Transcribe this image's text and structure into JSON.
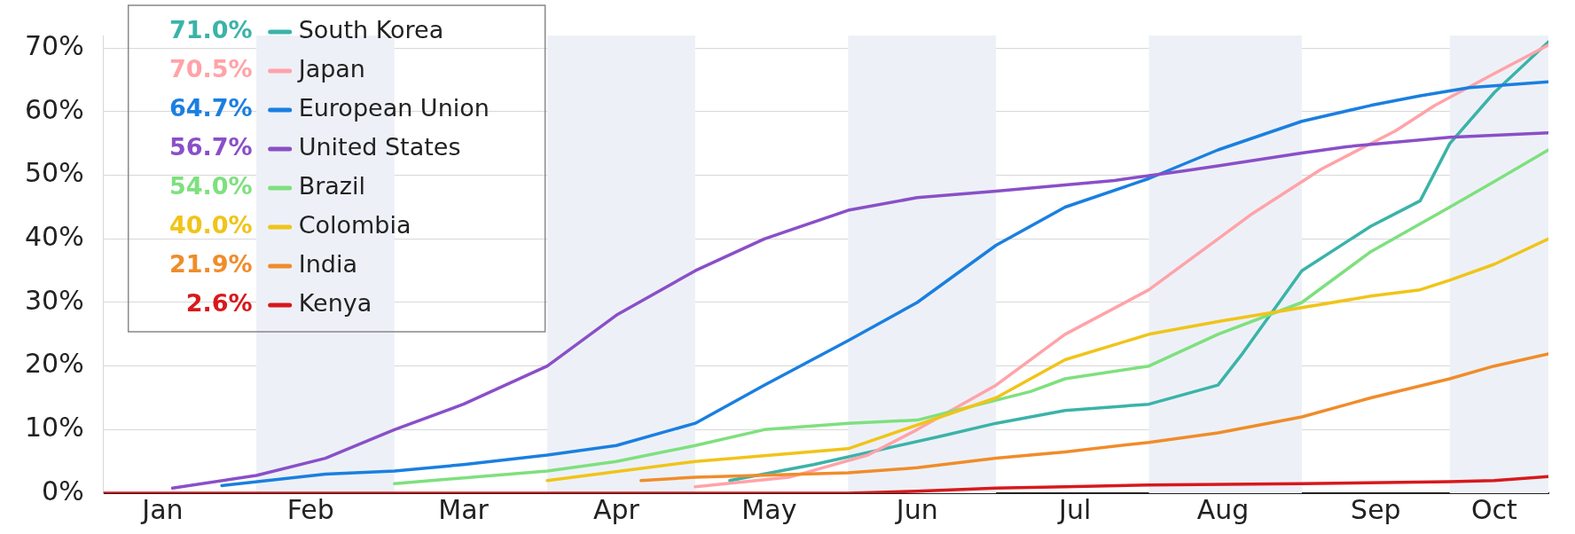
{
  "chart_data": {
    "type": "line",
    "series": [
      {
        "name": "South Korea",
        "color": "#3bb3a8",
        "x": [
          "--05-08",
          "--05-25",
          "--06-20",
          "--07-01",
          "--07-15",
          "--08-01",
          "--08-15",
          "--08-20",
          "--09-01",
          "--09-15",
          "--09-25",
          "--10-01",
          "--10-10",
          "--10-21"
        ],
        "values": [
          2,
          4.5,
          9,
          11,
          13,
          14,
          17,
          22,
          35,
          42,
          46,
          55,
          63,
          71
        ]
      },
      {
        "name": "Japan",
        "color": "#ffa3a8",
        "x": [
          "--05-01",
          "--05-20",
          "--06-05",
          "--06-15",
          "--07-01",
          "--07-15",
          "--08-01",
          "--08-15",
          "--08-22",
          "--09-05",
          "--09-20",
          "--09-28",
          "--10-10",
          "--10-21"
        ],
        "values": [
          1,
          2.5,
          6,
          10,
          17,
          25,
          32,
          40,
          44,
          51,
          57,
          61,
          66,
          70.5
        ]
      },
      {
        "name": "European Union",
        "color": "#1a7fe0",
        "x": [
          "--01-25",
          "--02-15",
          "--03-01",
          "--03-15",
          "--04-01",
          "--04-15",
          "--05-01",
          "--05-15",
          "--06-01",
          "--06-15",
          "--07-01",
          "--07-15",
          "--08-01",
          "--08-15",
          "--09-01",
          "--09-15",
          "--09-25",
          "--10-05",
          "--10-21"
        ],
        "values": [
          1.2,
          3,
          3.5,
          4.5,
          6,
          7.5,
          11,
          17,
          24,
          30,
          39,
          45,
          49.5,
          54,
          58.5,
          61,
          62.5,
          63.8,
          64.7
        ]
      },
      {
        "name": "United States",
        "color": "#8a4fc8",
        "x": [
          "--01-15",
          "--02-01",
          "--02-15",
          "--03-01",
          "--03-15",
          "--04-01",
          "--04-15",
          "--05-01",
          "--05-15",
          "--06-01",
          "--06-15",
          "--07-01",
          "--07-15",
          "--07-25",
          "--08-08",
          "--08-15",
          "--09-01",
          "--09-10",
          "--10-01",
          "--10-21"
        ],
        "values": [
          0.8,
          2.8,
          5.5,
          10,
          14,
          20,
          28,
          35,
          40,
          44.5,
          46.5,
          47.5,
          48.5,
          49.2,
          50.7,
          51.5,
          53.5,
          54.5,
          56,
          56.7
        ]
      },
      {
        "name": "Brazil",
        "color": "#7ee07e",
        "x": [
          "--03-01",
          "--04-01",
          "--04-15",
          "--05-01",
          "--05-15",
          "--06-01",
          "--06-15",
          "--07-08",
          "--07-15",
          "--08-01",
          "--08-15",
          "--09-01",
          "--09-15",
          "--10-01",
          "--10-10",
          "--10-21"
        ],
        "values": [
          1.5,
          3.5,
          5,
          7.5,
          10,
          11,
          11.5,
          16,
          18,
          20,
          25,
          30,
          38,
          45,
          49,
          54
        ]
      },
      {
        "name": "Colombia",
        "color": "#f0c419",
        "x": [
          "--04-01",
          "--05-01",
          "--06-01",
          "--07-01",
          "--07-15",
          "--08-01",
          "--08-15",
          "--09-15",
          "--09-25",
          "--10-01",
          "--10-10",
          "--10-21"
        ],
        "values": [
          2,
          5,
          7,
          15,
          21,
          25,
          27,
          31,
          32,
          33.5,
          36,
          40
        ]
      },
      {
        "name": "India",
        "color": "#f08c2a",
        "x": [
          "--04-20",
          "--05-01",
          "--06-01",
          "--06-15",
          "--07-01",
          "--07-15",
          "--08-01",
          "--08-15",
          "--09-01",
          "--09-15",
          "--10-01",
          "--10-10",
          "--10-21"
        ],
        "values": [
          2,
          2.5,
          3.2,
          4,
          5.5,
          6.5,
          8,
          9.5,
          12,
          15,
          18,
          20,
          21.9
        ]
      },
      {
        "name": "Kenya",
        "color": "#d7191c",
        "x": [
          "--01-01",
          "--06-01",
          "--06-15",
          "--07-01",
          "--07-15",
          "--08-01",
          "--09-01",
          "--10-01",
          "--10-10",
          "--10-21"
        ],
        "values": [
          0,
          0,
          0.3,
          0.8,
          1,
          1.3,
          1.5,
          1.8,
          2,
          2.6
        ]
      }
    ],
    "annotations": [
      "71.0%",
      "70.5%",
      "64.7%",
      "56.7%",
      "54.0%",
      "40.0%",
      "21.9%",
      "2.6%"
    ],
    "xlim": [
      "--01-01",
      "--10-21"
    ],
    "xticks": [
      {
        "value": "--01-13",
        "label": "Jan"
      },
      {
        "value": "--02-12",
        "label": "Feb"
      },
      {
        "value": "--03-15",
        "label": "Mar"
      },
      {
        "value": "--04-15",
        "label": "Apr"
      },
      {
        "value": "--05-16",
        "label": "May"
      },
      {
        "value": "--06-15",
        "label": "Jun"
      },
      {
        "value": "--07-17",
        "label": "Jul"
      },
      {
        "value": "--08-16",
        "label": "Aug"
      },
      {
        "value": "--09-16",
        "label": "Sep"
      },
      {
        "value": "--10-10",
        "label": "Oct"
      }
    ],
    "ylim": [
      0,
      72
    ],
    "yticks": [
      {
        "value": 0,
        "label": "0%"
      },
      {
        "value": 10,
        "label": "10%"
      },
      {
        "value": 20,
        "label": "20%"
      },
      {
        "value": 30,
        "label": "30%"
      },
      {
        "value": 40,
        "label": "40%"
      },
      {
        "value": 50,
        "label": "50%"
      },
      {
        "value": 60,
        "label": "60%"
      },
      {
        "value": 70,
        "label": "70%"
      }
    ],
    "bands": [
      {
        "axis": "x",
        "from": "--02-01",
        "to": "--03-01",
        "color": "#edf1f7"
      },
      {
        "axis": "x",
        "from": "--04-01",
        "to": "--05-01",
        "color": "#edf1f7"
      },
      {
        "axis": "x",
        "from": "--06-01",
        "to": "--07-01",
        "color": "#edf1f7"
      },
      {
        "axis": "x",
        "from": "--08-01",
        "to": "--09-01",
        "color": "#edf1f7"
      },
      {
        "axis": "x",
        "from": "--10-01",
        "to": "--10-21",
        "color": "#edf1f7"
      }
    ],
    "grid": "y",
    "legend": "top left",
    "marker": "none",
    "line_style": "solid"
  }
}
